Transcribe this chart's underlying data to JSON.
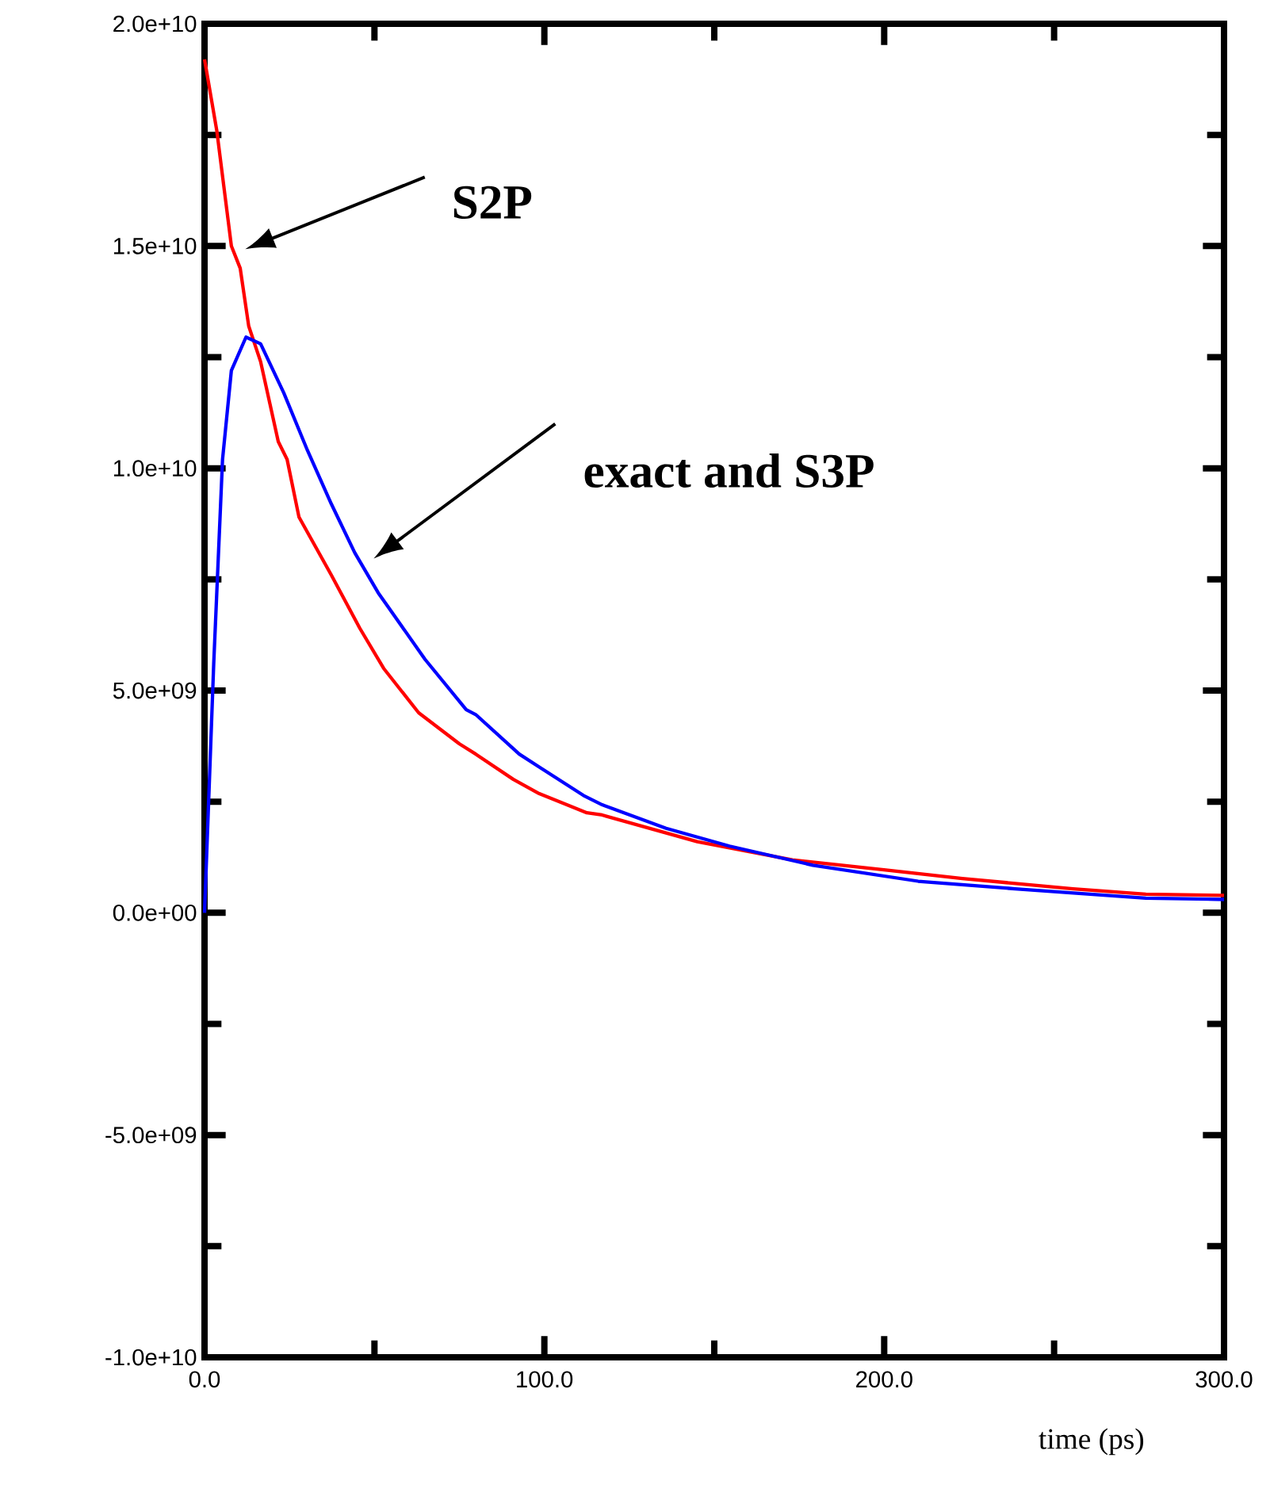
{
  "chart_data": {
    "type": "line",
    "xlabel": "time (ps)",
    "xlim": [
      0,
      300
    ],
    "xticks": [
      {
        "value": 0,
        "label": "0.0"
      },
      {
        "value": 100,
        "label": "100.0"
      },
      {
        "value": 200,
        "label": "200.0"
      },
      {
        "value": 300,
        "label": "300.0"
      }
    ],
    "ylim": [
      -10000000000.0,
      20000000000.0
    ],
    "yticks": [
      {
        "value": -10000000000.0,
        "label": "-1.0e+10"
      },
      {
        "value": -5000000000.0,
        "label": "-5.0e+09"
      },
      {
        "value": 0,
        "label": "0.0e+00"
      },
      {
        "value": 5000000000.0,
        "label": "5.0e+09"
      },
      {
        "value": 10000000000.0,
        "label": "1.0e+10"
      },
      {
        "value": 15000000000.0,
        "label": "1.5e+10"
      },
      {
        "value": 20000000000.0,
        "label": "2.0e+10"
      }
    ],
    "grid": false,
    "marker": "none",
    "line_style": "solid",
    "series": [
      {
        "color": "#ff0000",
        "x": [
          0,
          3.6,
          7.9,
          10.5,
          13,
          16.5,
          21.7,
          24.3,
          27.8,
          37.3,
          45.7,
          52.7,
          63,
          75,
          79.8,
          90.9,
          98.5,
          112.5,
          117,
          145,
          173,
          201,
          223,
          255.6,
          277,
          300
        ],
        "values": [
          19200000000.0,
          17600000000.0,
          15000000000.0,
          14500000000.0,
          13200000000.0,
          12400000000.0,
          10600000000.0,
          10200000000.0,
          8900000000.0,
          7600000000.0,
          6400000000.0,
          5500000000.0,
          4500000000.0,
          3800000000.0,
          3570000000.0,
          3000000000.0,
          2680000000.0,
          2250000000.0,
          2200000000.0,
          1600000000.0,
          1190000000.0,
          960000000.0,
          770000000.0,
          540000000.0,
          420000000.0,
          390000000.0
        ]
      },
      {
        "color": "#0000ff",
        "x": [
          0,
          2.7,
          5.3,
          7.9,
          12.2,
          16.5,
          23.3,
          30.3,
          37.3,
          44.2,
          51.1,
          64.9,
          77,
          79.8,
          92.6,
          98.5,
          111.5,
          117,
          135.8,
          154.5,
          179,
          210,
          238.5,
          277,
          300
        ],
        "values": [
          0,
          5600000000.0,
          10200000000.0,
          12200000000.0,
          12950000000.0,
          12800000000.0,
          11700000000.0,
          10400000000.0,
          9200000000.0,
          8100000000.0,
          7200000000.0,
          5700000000.0,
          4570000000.0,
          4460000000.0,
          3570000000.0,
          3280000000.0,
          2640000000.0,
          2430000000.0,
          1900000000.0,
          1500000000.0,
          1070000000.0,
          710000000.0,
          540000000.0,
          330000000.0,
          300000000.0
        ]
      }
    ],
    "annotations": [
      "S2P",
      "exact and S3P"
    ]
  }
}
